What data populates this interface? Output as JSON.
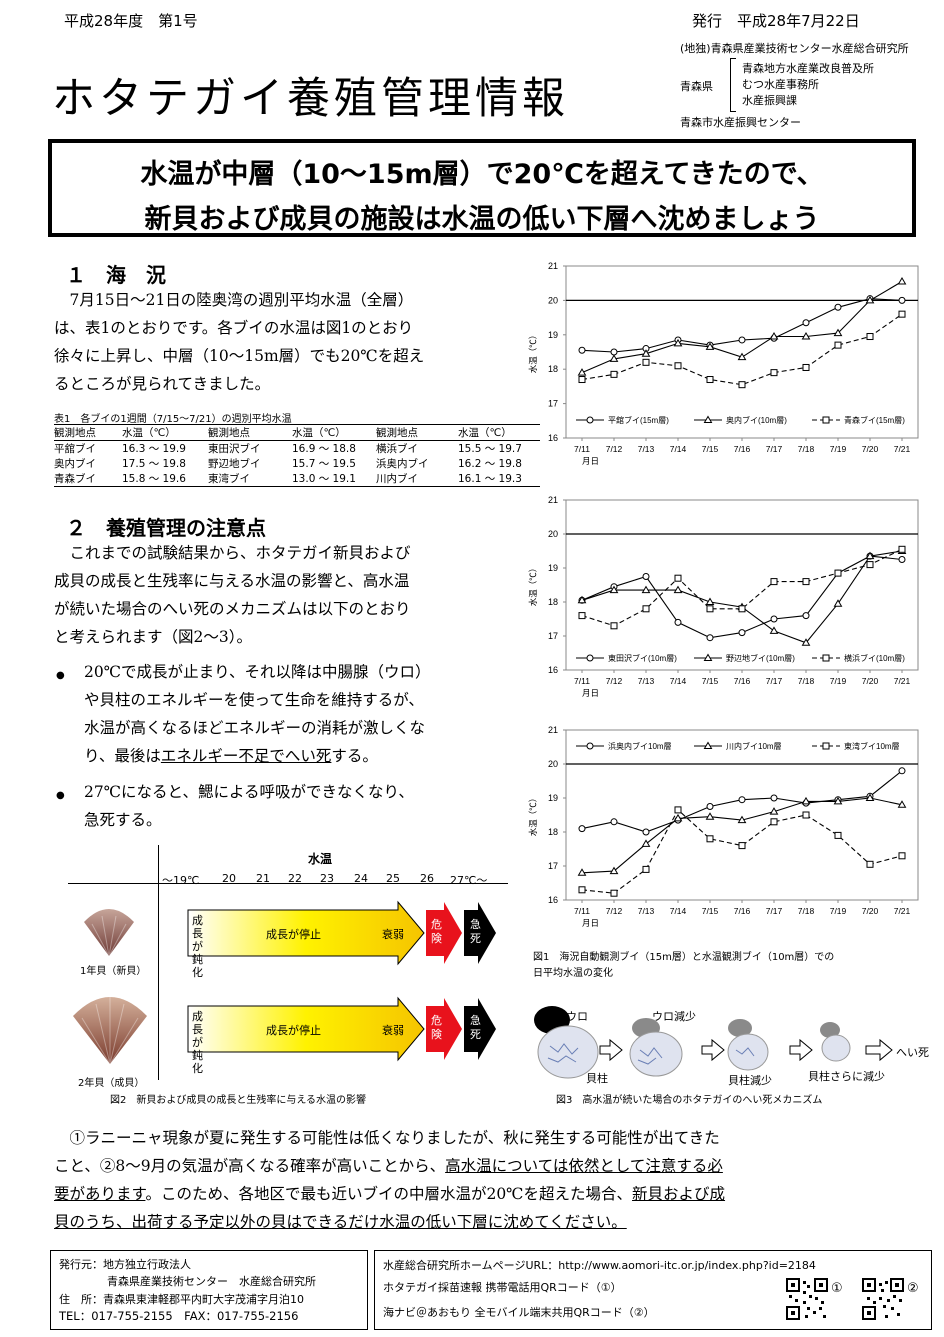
{
  "header": {
    "issue": "平成28年度　第1号",
    "issued_label": "発行　平成28年7月22日",
    "title": "ホタテガイ養殖管理情報",
    "org_main": "(地独)青森県産業技術センター水産総合研究所",
    "aomori": "青森県",
    "org_sub1": "青森地方水産業改良普及所",
    "org_sub2": "むつ水産事務所",
    "org_sub3": "水産振興課",
    "org_city": "青森市水産振興センター"
  },
  "headline": {
    "line1": "水温が中層（10～15m層）で20℃を超えてきたので、",
    "line2": "新貝および成貝の施設は水温の低い下層へ沈めましょう"
  },
  "section1": {
    "title": "１　海　況",
    "p1": "　7月15日～21日の陸奥湾の週別平均水温（全層）",
    "p2": "は、表1のとおりです。各ブイの水温は図1のとおり",
    "p3": "徐々に上昇し、中層（10～15m層）でも20℃を超え",
    "p4": "るところが見られてきました。"
  },
  "table1": {
    "caption": "表1　各ブイの1週間（7/15～7/21）の週別平均水温",
    "headers": [
      "観測地点",
      "水温（℃）",
      "観測地点",
      "水温（℃）",
      "観測地点",
      "水温（℃）"
    ],
    "rows": [
      [
        "平舘ブイ",
        "16.3 ～ 19.9",
        "東田沢ブイ",
        "16.9 ～ 18.8",
        "横浜ブイ",
        "15.5 ～ 19.7"
      ],
      [
        "奥内ブイ",
        "17.5 ～ 19.8",
        "野辺地ブイ",
        "15.7 ～ 19.5",
        "浜奥内ブイ",
        "16.2 ～ 19.8"
      ],
      [
        "青森ブイ",
        "15.8 ～ 19.6",
        "東湾ブイ",
        "13.0 ～ 19.1",
        "川内ブイ",
        "16.1 ～ 19.3"
      ]
    ]
  },
  "section2": {
    "title": "２　養殖管理の注意点",
    "p1": "　これまでの試験結果から、ホタテガイ新貝および",
    "p2": "成貝の成長と生残率に与える水温の影響と、高水温",
    "p3": "が続いた場合のへい死のメカニズムは以下のとおり",
    "p4": "と考えられます（図2～3）。",
    "b1_l1": "20℃で成長が止まり、それ以降は中腸腺（ウロ）",
    "b1_l2": "や貝柱のエネルギーを使って生命を維持するが、",
    "b1_l3": "水温が高くなるほどエネルギーの消耗が激しくな",
    "b1_l4a": "り、最後は",
    "b1_l4u": "エネルギー不足でへい死",
    "b1_l4b": "する。",
    "b2_l1": "27℃になると、鰓による呼吸ができなくなり、",
    "b2_l2": "急死する。"
  },
  "fig2": {
    "temp_label": "水温",
    "scale": [
      "～19℃",
      "20",
      "21",
      "22",
      "23",
      "24",
      "25",
      "26",
      "27℃～"
    ],
    "shell1_label": "1年貝（新貝）",
    "shell2_label": "2年貝（成貝）",
    "slow": "成長が鈍化",
    "stop": "成長が停止",
    "weak": "衰弱",
    "danger": "危険",
    "sudden": "急死",
    "caption": "図2　新貝および成貝の成長と生残率に与える水温の影響"
  },
  "fig1": {
    "caption_l1": "図1　海況自動観測ブイ（15m層）と水温観測ブイ（10m層）での",
    "caption_l2": "日平均水温の変化",
    "ylabel": "水温（℃）",
    "xlabel": "月日"
  },
  "fig3": {
    "uro": "ウロ",
    "uro_less": "ウロ減少",
    "kaibashira": "貝柱",
    "kaibashira_less": "貝柱減少",
    "kaibashira_less2": "貝柱さらに減少",
    "death": "へい死",
    "caption": "図3　高水温が続いた場合のホタテガイのへい死メカニズム"
  },
  "closing": {
    "l1": "　①ラニーニャ現象が夏に発生する可能性は低くなりましたが、秋に発生する可能性が出てきた",
    "l2a": "こと、②8～9月の気温が高くなる確率が高いことから、",
    "l2u": "高水温については依然として注意する必",
    "l3u": "要があります",
    "l3b": "。このため、各地区で最も近いブイの中層水温が20℃を超えた場合、",
    "l3u2": "新貝および成",
    "l4u": "貝のうち、出荷する予定以外の貝はできるだけ水温の低い下層に沈めてください。"
  },
  "footer": {
    "publisher_label": "発行元：地方独立行政法人",
    "publisher_name": "青森県産業技術センター　水産総合研究所",
    "address": "住　所：青森県東津軽郡平内町大字茂浦字月泊10",
    "phone": "TEL：017-755-2155　FAX：017-755-2156",
    "url": "水産総合研究所ホームページURL：http://www.aomori-itc.or.jp/index.php?id=2184",
    "qr1_text": "ホタテガイ採苗速報 携帯電話用QRコード（①）",
    "qr2_text": "海ナビ＠あおもり 全モバイル端末共用QRコード（②）",
    "qr1_mark": "①",
    "qr2_mark": "②"
  },
  "chart_data": [
    {
      "type": "line",
      "title": "",
      "xlabel": "月日",
      "ylabel": "水温（℃）",
      "ylim": [
        16,
        21
      ],
      "grid": false,
      "reference_line": 20,
      "legend": "bottom",
      "x": [
        "7/11",
        "7/12",
        "7/13",
        "7/14",
        "7/15",
        "7/16",
        "7/17",
        "7/18",
        "7/19",
        "7/20",
        "7/21"
      ],
      "series": [
        {
          "name": "平舘ブイ(15m層)",
          "marker": "circle",
          "dash": false,
          "values": [
            18.55,
            18.5,
            18.6,
            18.85,
            18.7,
            18.85,
            18.9,
            19.35,
            19.8,
            20.05,
            20.0
          ]
        },
        {
          "name": "奥内ブイ(10m層)",
          "marker": "triangle",
          "dash": false,
          "values": [
            17.9,
            18.3,
            18.45,
            18.75,
            18.65,
            18.35,
            18.95,
            18.95,
            19.05,
            20.0,
            20.55
          ]
        },
        {
          "name": "青森ブイ(15m層)",
          "marker": "square",
          "dash": true,
          "values": [
            17.7,
            17.85,
            18.2,
            18.1,
            17.7,
            17.55,
            17.9,
            18.05,
            18.7,
            18.95,
            19.6
          ]
        }
      ]
    },
    {
      "type": "line",
      "title": "",
      "xlabel": "月日",
      "ylabel": "水温（℃）",
      "ylim": [
        16,
        21
      ],
      "grid": false,
      "reference_line": 20,
      "legend": "bottom",
      "x": [
        "7/11",
        "7/12",
        "7/13",
        "7/14",
        "7/15",
        "7/16",
        "7/17",
        "7/18",
        "7/19",
        "7/20",
        "7/21"
      ],
      "series": [
        {
          "name": "東田沢ブイ(10m層)",
          "marker": "circle",
          "dash": false,
          "values": [
            18.05,
            18.45,
            18.75,
            17.4,
            16.95,
            17.1,
            17.5,
            17.6,
            18.85,
            19.35,
            19.25
          ]
        },
        {
          "name": "野辺地ブイ(10m層)",
          "marker": "triangle",
          "dash": false,
          "values": [
            18.05,
            18.35,
            18.35,
            18.35,
            18.0,
            17.85,
            17.15,
            16.8,
            17.95,
            19.35,
            19.5
          ]
        },
        {
          "name": "横浜ブイ(10m層)",
          "marker": "square",
          "dash": true,
          "values": [
            17.6,
            17.3,
            17.8,
            18.7,
            17.8,
            17.8,
            18.6,
            18.6,
            18.85,
            19.1,
            19.55
          ]
        }
      ]
    },
    {
      "type": "line",
      "title": "",
      "xlabel": "月日",
      "ylabel": "水温（℃）",
      "ylim": [
        16,
        21
      ],
      "grid": false,
      "reference_line": 20,
      "legend": "top",
      "x": [
        "7/11",
        "7/12",
        "7/13",
        "7/14",
        "7/15",
        "7/16",
        "7/17",
        "7/18",
        "7/19",
        "7/20",
        "7/21"
      ],
      "series": [
        {
          "name": "浜奥内ブイ10m層",
          "marker": "circle",
          "dash": false,
          "values": [
            18.1,
            18.3,
            18.0,
            18.35,
            18.75,
            18.95,
            19.0,
            18.85,
            18.95,
            19.05,
            19.8
          ]
        },
        {
          "name": "川内ブイ10m層",
          "marker": "triangle",
          "dash": false,
          "values": [
            16.8,
            16.85,
            17.65,
            18.4,
            18.45,
            18.35,
            18.6,
            18.9,
            18.9,
            19.0,
            18.8
          ]
        },
        {
          "name": "東湾ブイ10m層",
          "marker": "square",
          "dash": true,
          "values": [
            16.3,
            16.2,
            16.9,
            18.65,
            17.8,
            17.6,
            18.3,
            18.5,
            17.9,
            17.05,
            17.3
          ]
        }
      ]
    }
  ]
}
